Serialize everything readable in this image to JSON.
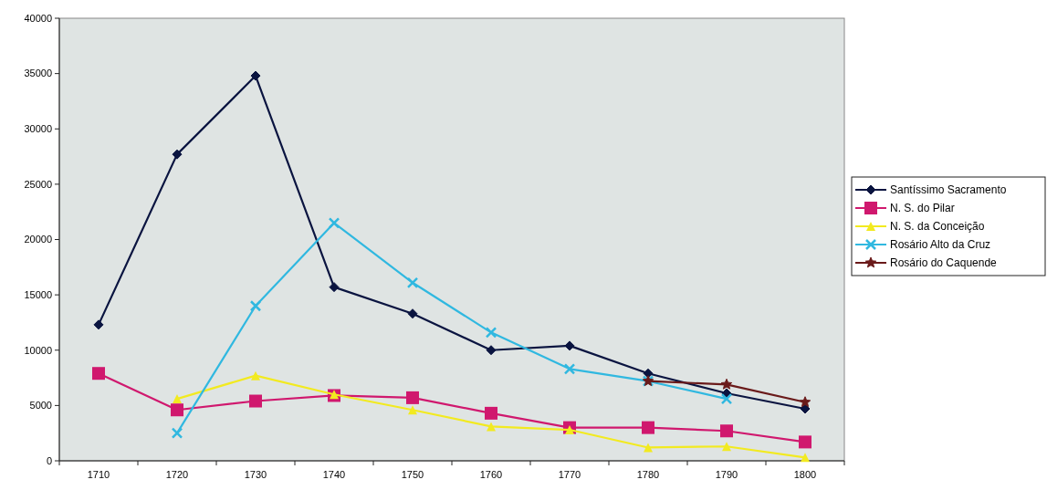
{
  "chart_data": {
    "type": "line",
    "categories": [
      "1710",
      "1720",
      "1730",
      "1740",
      "1750",
      "1760",
      "1770",
      "1780",
      "1790",
      "1800"
    ],
    "ylim": [
      0,
      40000
    ],
    "yticks": [
      0,
      5000,
      10000,
      15000,
      20000,
      25000,
      30000,
      35000,
      40000
    ],
    "grid": false,
    "legend": "right",
    "line_style": "solid",
    "series": [
      {
        "name": "Santíssimo Sacramento",
        "color": "#0a1440",
        "marker": "diamond",
        "values": [
          12300,
          27700,
          34800,
          15700,
          13300,
          10000,
          10400,
          7900,
          6100,
          4700
        ]
      },
      {
        "name": "N. S. do Pilar",
        "color": "#d0186e",
        "marker": "square",
        "values": [
          7900,
          4600,
          5400,
          5900,
          5700,
          4300,
          3000,
          3000,
          2700,
          1700
        ]
      },
      {
        "name": "N. S. da Conceição",
        "color": "#f2ea20",
        "marker": "triangle",
        "values": [
          null,
          5600,
          7700,
          6000,
          4600,
          3100,
          2800,
          1200,
          1300,
          300
        ]
      },
      {
        "name": "Rosário Alto da Cruz",
        "color": "#30b8e0",
        "marker": "cross",
        "values": [
          null,
          2500,
          14000,
          21500,
          16100,
          11600,
          8300,
          7200,
          5600,
          null
        ]
      },
      {
        "name": "Rosário do Caquende",
        "color": "#6a1a1a",
        "marker": "star",
        "values": [
          null,
          null,
          null,
          null,
          null,
          null,
          null,
          7200,
          6900,
          5300
        ]
      }
    ]
  }
}
